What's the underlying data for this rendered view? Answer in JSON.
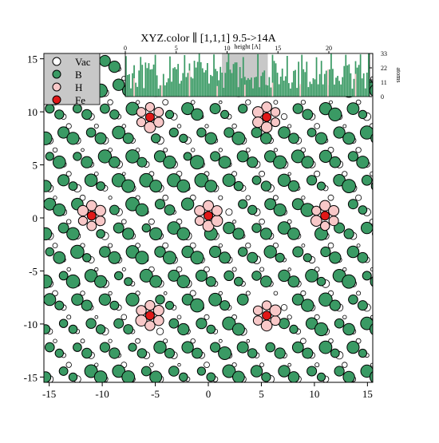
{
  "chart_data": [
    {
      "type": "scatter",
      "title": "XYZ.color ∥ [1,1,1] 9.5->14A",
      "xlim": [
        -15.5,
        15.5
      ],
      "ylim": [
        -15.5,
        15.5
      ],
      "x_ticks": [
        -15,
        -10,
        -5,
        0,
        5,
        10,
        15
      ],
      "y_ticks": [
        -15,
        -10,
        -5,
        0,
        5,
        10,
        15
      ],
      "grid": false,
      "legend_position": "top-left",
      "legend": [
        {
          "name": "Vac",
          "color": "#ffffff"
        },
        {
          "name": "B",
          "color": "#3a9a64"
        },
        {
          "name": "H",
          "color": "#f8c8c8"
        },
        {
          "name": "Fe",
          "color": "#e01818"
        }
      ],
      "colors": {
        "Vac": "#ffffff",
        "B": "#3a9a64",
        "H": "#f8c8c8",
        "Fe": "#e01818"
      },
      "fe_sites": [
        [
          -5.5,
          9.5
        ],
        [
          5.5,
          9.5
        ],
        [
          -11,
          0.2
        ],
        [
          0,
          0.2
        ],
        [
          11,
          0.2
        ],
        [
          -5.5,
          -9.2
        ],
        [
          5.5,
          -9.2
        ]
      ],
      "b_lattice": {
        "a1": [
          2.6,
          0.0
        ],
        "a2": [
          1.3,
          2.25
        ],
        "origin": [
          0.65,
          1.3
        ]
      },
      "vac_lattice": {
        "a1": [
          2.6,
          0.0
        ],
        "a2": [
          1.3,
          2.25
        ],
        "origin": [
          1.95,
          0.55
        ]
      }
    },
    {
      "type": "bar",
      "title": "",
      "xlabel": "height [A]",
      "ylabel": "atoms",
      "xlim": [
        0,
        24
      ],
      "ylim": [
        0,
        33
      ],
      "x_ticks": [
        0,
        5,
        10,
        15,
        20
      ],
      "x_tick_labels": [
        "0",
        "5",
        "10",
        "15",
        "20"
      ],
      "y_ticks": [
        0,
        11,
        22,
        33
      ],
      "highlight_range": [
        9.5,
        14
      ],
      "series": [
        {
          "color": "#3a9a64"
        },
        {
          "color": "#f8c8c8"
        }
      ]
    }
  ]
}
